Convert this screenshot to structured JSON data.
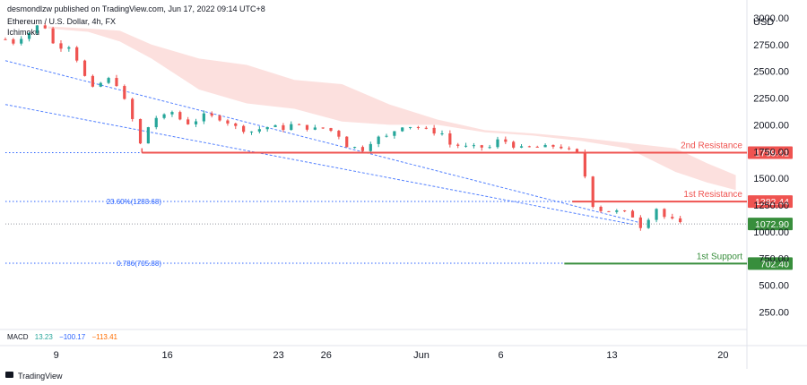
{
  "header": {
    "publisher": "desmondlzw published on TradingView.com, Jun 17, 2022 09:14 UTC+8",
    "symbol": "Ethereum / U.S. Dollar, 4h, FX",
    "indicator": "Ichimoku"
  },
  "footer": {
    "logo_text": "TradingView"
  },
  "macd": {
    "label": "MACD",
    "value1": "13.23",
    "value2": "−100.17",
    "value3": "−113.41",
    "color1": "#26a69a",
    "color2": "#2962ff",
    "color3": "#ff6d00"
  },
  "colors": {
    "up": "#26a69a",
    "down": "#ef5350",
    "resistance": "#ef5350",
    "support": "#388e3c",
    "fib": "#2962ff",
    "cloud": "#fbd5d3",
    "price_label": "#388e3c"
  },
  "chart_data": {
    "type": "candlestick",
    "title": "Ethereum / U.S. Dollar, 4h, FX",
    "currency_label": "USD",
    "y_ticks": [
      "3000.00",
      "2750.00",
      "2500.00",
      "2250.00",
      "2000.00",
      "1750.00",
      "1500.00",
      "1250.00",
      "1000.00",
      "750.00",
      "500.00",
      "250.00"
    ],
    "x_ticks": [
      "9",
      "16",
      "23",
      "26",
      "Jun",
      "6",
      "13",
      "20"
    ],
    "x_tick_days": [
      9,
      16,
      23,
      26,
      32,
      37,
      44,
      51
    ],
    "x_range_days": [
      5.8,
      52.5
    ],
    "ylim": [
      120,
      3050
    ],
    "levels": [
      {
        "name": "2nd Resistance",
        "value": 1739.41,
        "label": "1739.41",
        "start_day": 14.4,
        "style": "solid"
      },
      {
        "name": "1st Resistance",
        "value": 1282.44,
        "label": "1282.44",
        "start_day": 41.5,
        "style": "solid"
      },
      {
        "name": "1st Support",
        "value": 702.4,
        "label": "702.40",
        "start_day": 41.0,
        "style": "solid"
      }
    ],
    "dotted_levels": [
      {
        "value": 1739.41,
        "label": ""
      },
      {
        "value": 1283.68,
        "label": "23.60%(1283.68)"
      },
      {
        "value": 705.88,
        "label": "0.786(705.88)"
      }
    ],
    "current_price": {
      "value": 1072.9,
      "label": "1072.90"
    },
    "trendlines": [
      {
        "from": [
          5.8,
          2600
        ],
        "to": [
          45.9,
          1080
        ]
      },
      {
        "from": [
          5.8,
          2190
        ],
        "to": [
          45.3,
          1070
        ]
      }
    ],
    "cloud": [
      {
        "day": 8.5,
        "top": 2920,
        "bottom": 2900
      },
      {
        "day": 11.0,
        "top": 2900,
        "bottom": 2870
      },
      {
        "day": 13.0,
        "top": 2880,
        "bottom": 2780
      },
      {
        "day": 15.0,
        "top": 2750,
        "bottom": 2620
      },
      {
        "day": 18.0,
        "top": 2620,
        "bottom": 2330
      },
      {
        "day": 21.0,
        "top": 2560,
        "bottom": 2200
      },
      {
        "day": 24.0,
        "top": 2420,
        "bottom": 2150
      },
      {
        "day": 27.0,
        "top": 2380,
        "bottom": 2030
      },
      {
        "day": 30.0,
        "top": 2190,
        "bottom": 2000
      },
      {
        "day": 33.0,
        "top": 2050,
        "bottom": 2000
      },
      {
        "day": 36.0,
        "top": 1950,
        "bottom": 1930
      },
      {
        "day": 39.0,
        "top": 1920,
        "bottom": 1900
      },
      {
        "day": 42.0,
        "top": 1880,
        "bottom": 1850
      },
      {
        "day": 45.0,
        "top": 1830,
        "bottom": 1780
      },
      {
        "day": 48.0,
        "top": 1780,
        "bottom": 1560
      },
      {
        "day": 50.0,
        "top": 1640,
        "bottom": 1460
      },
      {
        "day": 51.8,
        "top": 1530,
        "bottom": 1390
      }
    ],
    "close_path": [
      [
        5.8,
        2800
      ],
      [
        6.3,
        2770
      ],
      [
        6.8,
        2820
      ],
      [
        7.4,
        2870
      ],
      [
        8.0,
        2950
      ],
      [
        8.4,
        2900
      ],
      [
        8.8,
        2760
      ],
      [
        9.3,
        2730
      ],
      [
        9.8,
        2740
      ],
      [
        10.1,
        2700
      ],
      [
        10.4,
        2570
      ],
      [
        10.8,
        2450
      ],
      [
        11.2,
        2330
      ],
      [
        11.6,
        2360
      ],
      [
        12.0,
        2420
      ],
      [
        12.4,
        2430
      ],
      [
        12.8,
        2380
      ],
      [
        13.1,
        2360
      ],
      [
        13.4,
        2160
      ],
      [
        13.8,
        2050
      ],
      [
        14.1,
        1960
      ],
      [
        14.3,
        1820
      ],
      [
        14.7,
        1960
      ],
      [
        15.2,
        2060
      ],
      [
        15.6,
        2090
      ],
      [
        16.0,
        2070
      ],
      [
        16.3,
        2120
      ],
      [
        16.7,
        2060
      ],
      [
        17.1,
        2030
      ],
      [
        17.5,
        2000
      ],
      [
        18.0,
        2070
      ],
      [
        18.5,
        2100
      ],
      [
        19.0,
        2060
      ],
      [
        19.5,
        2060
      ],
      [
        20.0,
        2000
      ],
      [
        20.6,
        1960
      ],
      [
        21.3,
        1940
      ],
      [
        22.0,
        1970
      ],
      [
        22.6,
        1990
      ],
      [
        23.2,
        1960
      ],
      [
        23.8,
        2000
      ],
      [
        24.5,
        1980
      ],
      [
        25.2,
        1960
      ],
      [
        25.8,
        1970
      ],
      [
        26.4,
        1940
      ],
      [
        27.0,
        1880
      ],
      [
        27.4,
        1780
      ],
      [
        27.9,
        1790
      ],
      [
        28.3,
        1770
      ],
      [
        28.8,
        1840
      ],
      [
        29.3,
        1880
      ],
      [
        29.9,
        1890
      ],
      [
        30.4,
        1960
      ],
      [
        30.9,
        2000
      ],
      [
        31.5,
        1980
      ],
      [
        32.0,
        1970
      ],
      [
        32.6,
        1940
      ],
      [
        33.3,
        1920
      ],
      [
        33.6,
        1820
      ],
      [
        34.2,
        1810
      ],
      [
        34.9,
        1790
      ],
      [
        35.5,
        1790
      ],
      [
        36.0,
        1790
      ],
      [
        36.4,
        1790
      ],
      [
        36.9,
        1870
      ],
      [
        37.5,
        1830
      ],
      [
        38.1,
        1780
      ],
      [
        38.4,
        1780
      ],
      [
        38.9,
        1790
      ],
      [
        39.6,
        1790
      ],
      [
        40.3,
        1800
      ],
      [
        40.9,
        1790
      ],
      [
        41.4,
        1750
      ],
      [
        41.8,
        1730
      ],
      [
        42.2,
        1610
      ],
      [
        42.5,
        1340
      ],
      [
        42.8,
        1250
      ],
      [
        43.2,
        1210
      ],
      [
        43.6,
        1180
      ],
      [
        44.1,
        1210
      ],
      [
        44.6,
        1160
      ],
      [
        45.1,
        1210
      ],
      [
        45.5,
        1080
      ],
      [
        45.8,
        1050
      ],
      [
        46.3,
        1130
      ],
      [
        46.8,
        1220
      ],
      [
        47.3,
        1140
      ],
      [
        47.8,
        1110
      ],
      [
        48.3,
        1072.9
      ]
    ]
  }
}
